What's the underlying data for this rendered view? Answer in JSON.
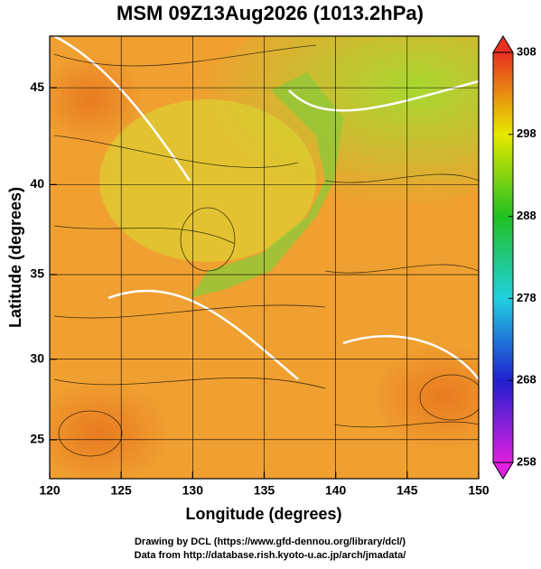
{
  "chart_data": {
    "type": "map",
    "title": "MSM 09Z13Aug2026 (1013.2hPa)",
    "xlabel": "Longitude (degrees)",
    "ylabel": "Latitude  (degrees)",
    "projection": "mercator",
    "xlim": [
      120,
      150
    ],
    "xticks": [
      120,
      125,
      130,
      135,
      140,
      145,
      150
    ],
    "ylim": [
      22.5,
      47.5
    ],
    "yticks": [
      25,
      30,
      35,
      40,
      45
    ],
    "grid": true,
    "colorbar": {
      "clim": [
        258,
        308
      ],
      "ticks": [
        258,
        268,
        278,
        288,
        298,
        308
      ],
      "colors": [
        "#e020e0",
        "#2020d0",
        "#20d0e0",
        "#20c020",
        "#e8e800",
        "#e83020"
      ]
    },
    "notes": [
      "Drawing by DCL (https://www.gfd-dennou.org/library/dcl/)",
      "Data from http://database.rish.kyoto-u.ac.jp/arch/jmadata/"
    ]
  }
}
